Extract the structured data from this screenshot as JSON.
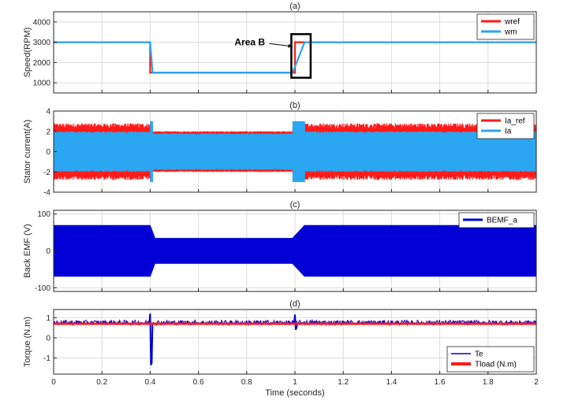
{
  "colors": {
    "red": "#ff1a1a",
    "light_blue": "#2aa7f0",
    "dark_blue": "#0000d6",
    "grid": "#dcdcdc",
    "axis": "#262626"
  },
  "chart_data": [
    {
      "type": "line",
      "title": "(a)",
      "ylabel": "Speed(RPM)",
      "xlabel": "",
      "xlim": [
        0,
        2
      ],
      "ylim": [
        500,
        4500
      ],
      "yticks": [
        1000,
        2000,
        3000,
        4000
      ],
      "grid": true,
      "legend_position": "top-right",
      "series": [
        {
          "name": "wref",
          "color": "#ff1a1a",
          "x": [
            0,
            0.4,
            0.4,
            1.0,
            1.0,
            2.0
          ],
          "y": [
            3000,
            3000,
            1500,
            1500,
            3000,
            3000
          ]
        },
        {
          "name": "wm",
          "color": "#2aa7f0",
          "x": [
            0,
            0.4,
            0.41,
            0.99,
            1.04,
            2.0
          ],
          "y": [
            3000,
            3000,
            1500,
            1500,
            3000,
            3000
          ]
        }
      ],
      "annotations": [
        {
          "text": "Area B",
          "x_range": [
            0.985,
            1.065
          ],
          "y_range": [
            1250,
            3400
          ],
          "arrow_to": [
            1.0,
            2950
          ]
        }
      ]
    },
    {
      "type": "line",
      "title": "(b)",
      "ylabel": "Stator current(A)",
      "xlabel": "",
      "xlim": [
        0,
        2
      ],
      "ylim": [
        -4,
        4
      ],
      "yticks": [
        -4,
        -2,
        0,
        2,
        4
      ],
      "grid": true,
      "legend_position": "top-right",
      "series": [
        {
          "name": "Ia_ref",
          "color": "#ff1a1a",
          "envelope": [
            {
              "x_start": 0,
              "x_end": 0.4,
              "amplitude": 2.3,
              "peak": 2.8
            },
            {
              "x_start": 0.41,
              "x_end": 0.99,
              "amplitude": 1.9,
              "peak": 2.0
            },
            {
              "x_start": 1.04,
              "x_end": 2.0,
              "amplitude": 2.3,
              "peak": 2.8
            }
          ]
        },
        {
          "name": "Ia",
          "color": "#2aa7f0",
          "envelope": [
            {
              "x_start": 0,
              "x_end": 0.4,
              "amplitude": 1.8,
              "peak": 2.0
            },
            {
              "x_start": 0.4,
              "x_end": 0.41,
              "amplitude": 3.0,
              "peak": 3.0
            },
            {
              "x_start": 0.41,
              "x_end": 0.99,
              "amplitude": 1.7,
              "peak": 1.8
            },
            {
              "x_start": 0.99,
              "x_end": 1.04,
              "amplitude": 3.0,
              "peak": 3.0
            },
            {
              "x_start": 1.04,
              "x_end": 2.0,
              "amplitude": 1.8,
              "peak": 2.0
            }
          ]
        }
      ]
    },
    {
      "type": "line",
      "title": "(c)",
      "ylabel": "Back EMF (V)",
      "xlabel": "",
      "xlim": [
        0,
        2
      ],
      "ylim": [
        -110,
        110
      ],
      "yticks": [
        -100,
        0,
        100
      ],
      "grid": true,
      "legend_position": "top-right",
      "series": [
        {
          "name": "BEMF_a",
          "color": "#0000d6",
          "envelope": [
            {
              "x_start": 0,
              "x_end": 0.4,
              "amplitude": 70
            },
            {
              "x_start": 0.42,
              "x_end": 0.99,
              "amplitude": 35
            },
            {
              "x_start": 1.04,
              "x_end": 2.0,
              "amplitude": 70
            }
          ],
          "transitions": [
            [
              0.4,
              0.42,
              70,
              35
            ],
            [
              0.99,
              1.04,
              35,
              70
            ]
          ]
        }
      ]
    },
    {
      "type": "line",
      "title": "(d)",
      "ylabel": "Torque (N.m)",
      "xlabel": "Time (seconds)",
      "xlim": [
        0,
        2
      ],
      "ylim": [
        -1.8,
        1.4
      ],
      "yticks": [
        -1,
        0,
        1
      ],
      "xticks": [
        0,
        0.2,
        0.4,
        0.6,
        0.8,
        1,
        1.2,
        1.4,
        1.6,
        1.8,
        2
      ],
      "grid": true,
      "legend_position": "bottom-right",
      "series": [
        {
          "name": "Te",
          "color": "#0000d6",
          "mean": 0.75,
          "ripple": 0.12,
          "events": [
            {
              "x": 0.4,
              "min": -1.35,
              "max": 1.2
            },
            {
              "x": 1.0,
              "min": 0.4,
              "max": 1.15
            }
          ]
        },
        {
          "name": "Tload (N.m)",
          "color": "#ff1a1a",
          "x": [
            0,
            2
          ],
          "y": [
            0.7,
            0.7
          ]
        }
      ]
    }
  ]
}
